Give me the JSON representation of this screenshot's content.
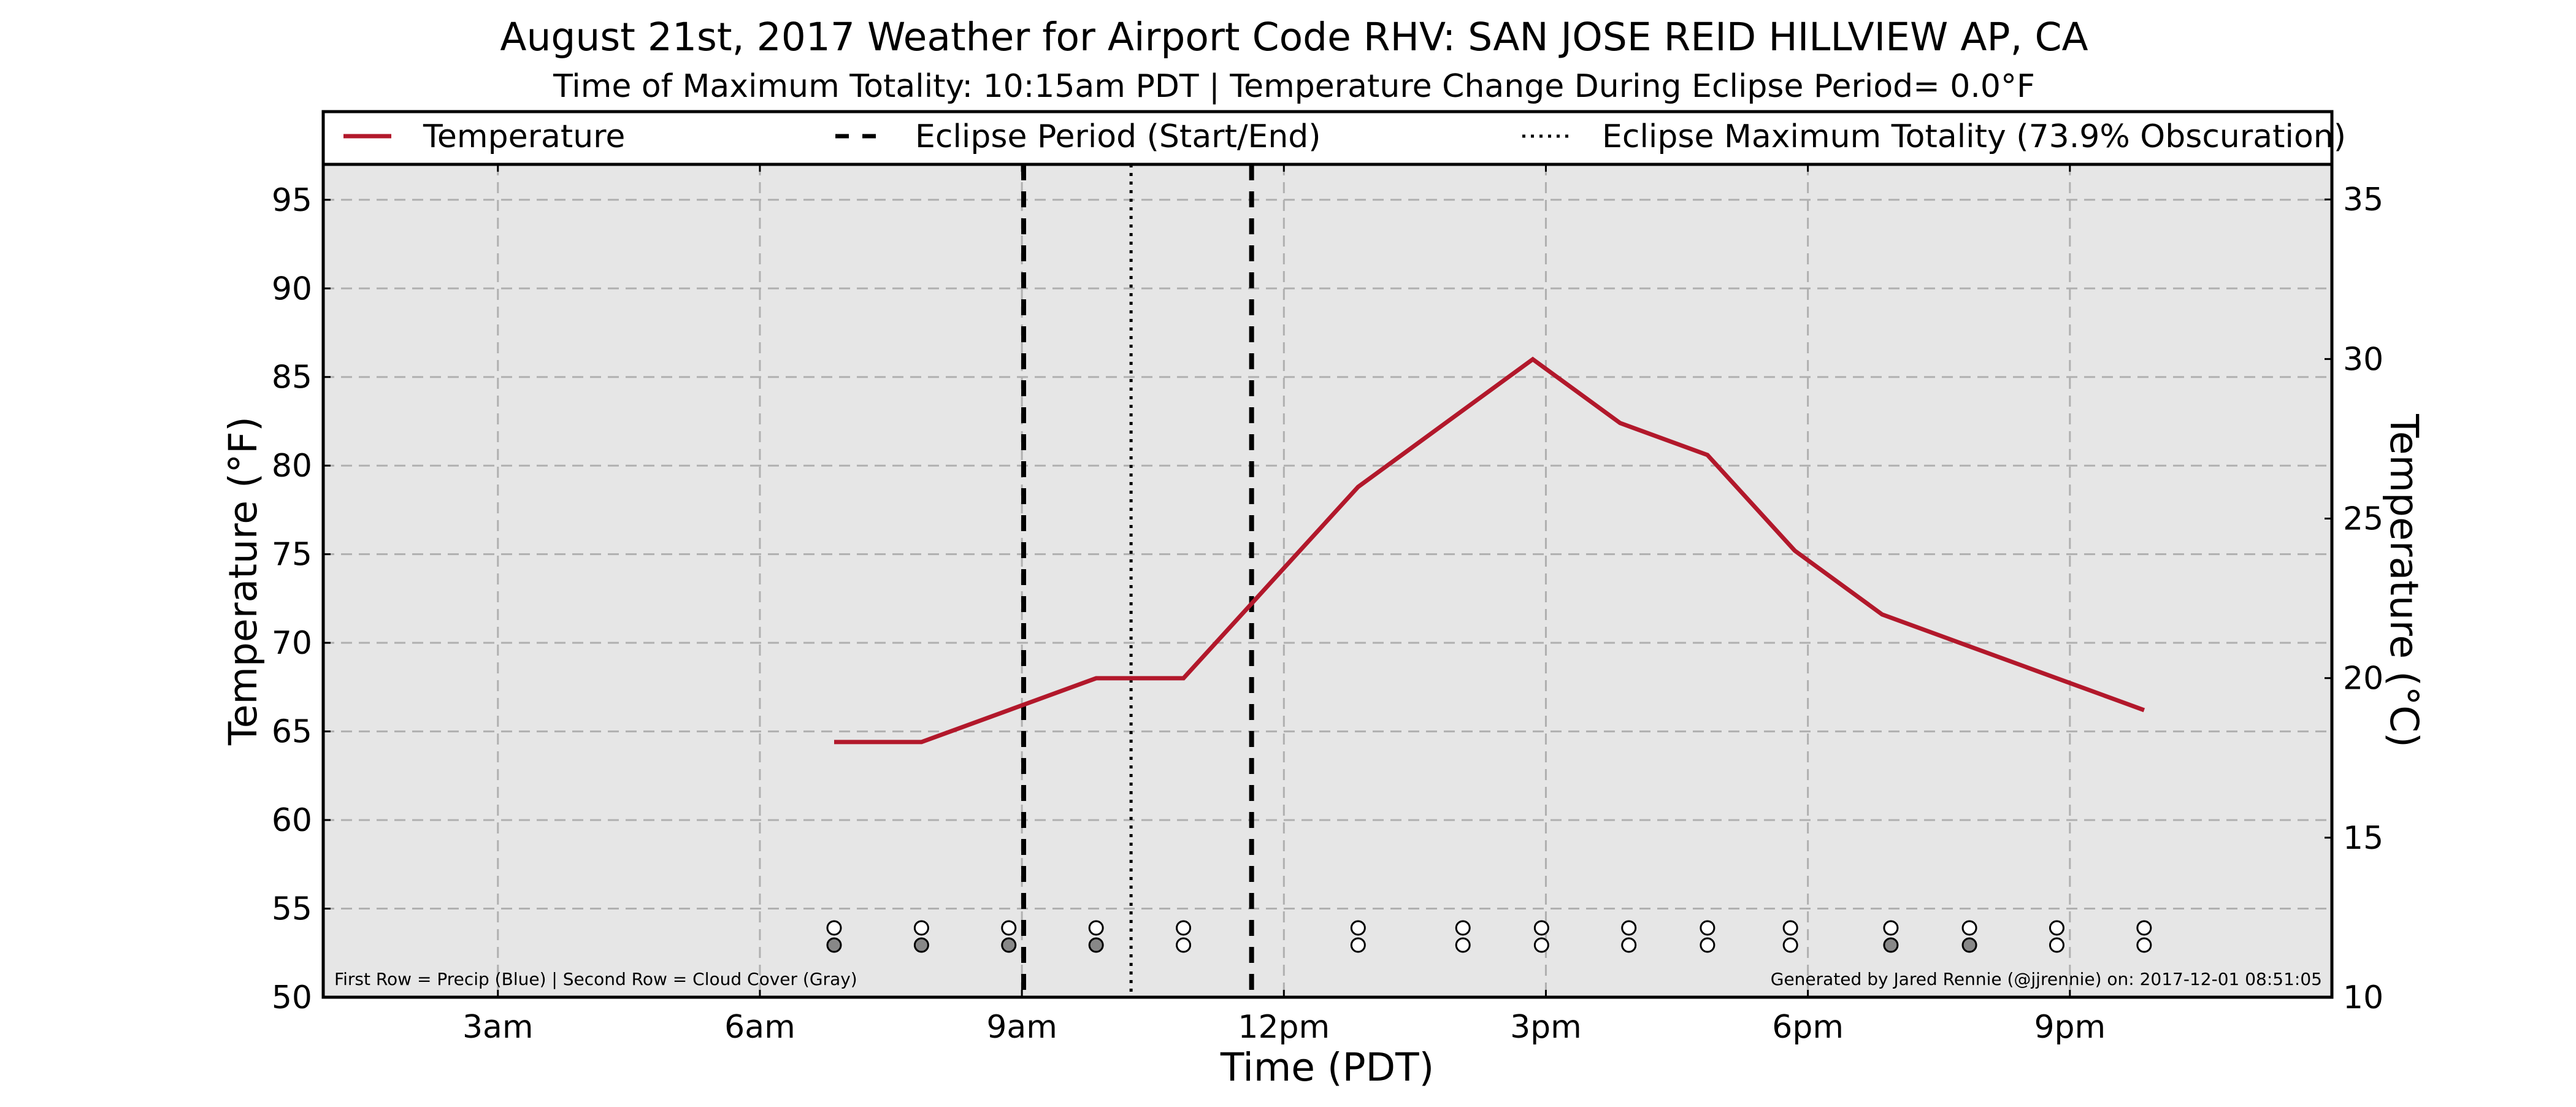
{
  "title": "August 21st, 2017 Weather for Airport Code RHV: SAN JOSE REID HILLVIEW AP, CA",
  "subtitle": "Time of Maximum Totality: 10:15am PDT | Temperature Change During Eclipse Period= 0.0°F",
  "footnotes": {
    "left": "First Row = Precip (Blue) | Second Row = Cloud Cover (Gray)",
    "right": "Generated by Jared Rennie (@jjrennie) on: 2017-12-01 08:51:05"
  },
  "colors": {
    "temperature_line": "#b2182b",
    "plot_background": "#e6e6e6",
    "grid": "#b0b0b0",
    "cloud_fill": "#888888",
    "empty_marker": "#ffffff",
    "event_lines": "#000000"
  },
  "chart_data": {
    "type": "line",
    "xlabel": "Time (PDT)",
    "ylabel": "Temperature (°F)",
    "y2label": "Temperature (°C)",
    "xlim": [
      1.0,
      24.0
    ],
    "ylim": [
      50,
      97
    ],
    "y2lim": [
      10,
      36.1
    ],
    "x_ticks": [
      3,
      6,
      9,
      12,
      15,
      18,
      21
    ],
    "x_tick_labels": [
      "3am",
      "6am",
      "9am",
      "12pm",
      "3pm",
      "6pm",
      "9pm"
    ],
    "y_ticks": [
      50,
      55,
      60,
      65,
      70,
      75,
      80,
      85,
      90,
      95
    ],
    "y2_ticks": [
      10,
      15,
      20,
      25,
      30,
      35
    ],
    "grid": true,
    "legend_position": "top",
    "series": [
      {
        "name": "Temperature",
        "style": "solid",
        "x": [
          6.85,
          7.85,
          8.85,
          9.85,
          10.85,
          11.85,
          12.85,
          13.85,
          14.85,
          15.85,
          16.85,
          17.85,
          18.85,
          19.85,
          20.85,
          21.85
        ],
        "y": [
          64.4,
          64.4,
          66.2,
          68.0,
          68.0,
          73.4,
          78.8,
          82.4,
          86.0,
          82.4,
          80.6,
          75.2,
          71.6,
          69.8,
          68.0,
          66.2
        ]
      }
    ],
    "events": [
      {
        "name": "Eclipse Period (Start/End)",
        "style": "dashed",
        "x": [
          9.02,
          11.63
        ]
      },
      {
        "name": "Eclipse Maximum Totality (73.9% Obscuration)",
        "style": "dotted",
        "x": [
          10.25
        ]
      }
    ],
    "observation_rows": {
      "x": [
        6.85,
        7.85,
        8.85,
        9.85,
        10.85,
        12.85,
        14.05,
        14.95,
        15.95,
        16.85,
        17.8,
        18.95,
        19.85,
        20.85,
        21.85
      ],
      "precip": [
        false,
        false,
        false,
        false,
        false,
        false,
        false,
        false,
        false,
        false,
        false,
        false,
        false,
        false,
        false
      ],
      "cloud_cover": [
        true,
        true,
        true,
        true,
        false,
        false,
        false,
        false,
        false,
        false,
        false,
        true,
        true,
        false,
        false
      ]
    }
  }
}
